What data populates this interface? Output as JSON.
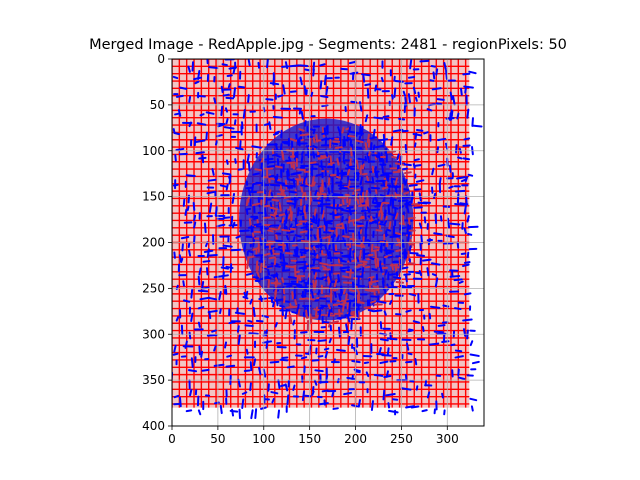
{
  "chart_data": {
    "type": "image",
    "title": "Merged Image - RedApple.jpg - Segments: 2481 - regionPixels: 50",
    "xlabel": "",
    "ylabel": "",
    "xlim": [
      0,
      340
    ],
    "ylim": [
      400,
      0
    ],
    "y_axis_inverted": true,
    "grid": true,
    "image_extent": {
      "x": [
        0,
        324
      ],
      "y": [
        0,
        380
      ]
    },
    "object": {
      "label": "apple",
      "cx": 168,
      "cy": 175,
      "rx": 95,
      "ry": 110
    },
    "x_ticks": [
      0,
      50,
      100,
      150,
      200,
      250,
      300
    ],
    "y_ticks": [
      0,
      50,
      100,
      150,
      200,
      250,
      300,
      350,
      400
    ],
    "x_tick_labels": [
      "0",
      "50",
      "100",
      "150",
      "200",
      "250",
      "300"
    ],
    "y_tick_labels": [
      "0",
      "50",
      "100",
      "150",
      "200",
      "250",
      "300",
      "350",
      "400"
    ],
    "segment_grid_step": 8,
    "colors": {
      "background": "#f2c4c4",
      "object_fill": "#1a1acc",
      "boundary_red": "#ff0000",
      "boundary_blue": "#0000ff",
      "gridline": "#b0b0b0"
    }
  }
}
